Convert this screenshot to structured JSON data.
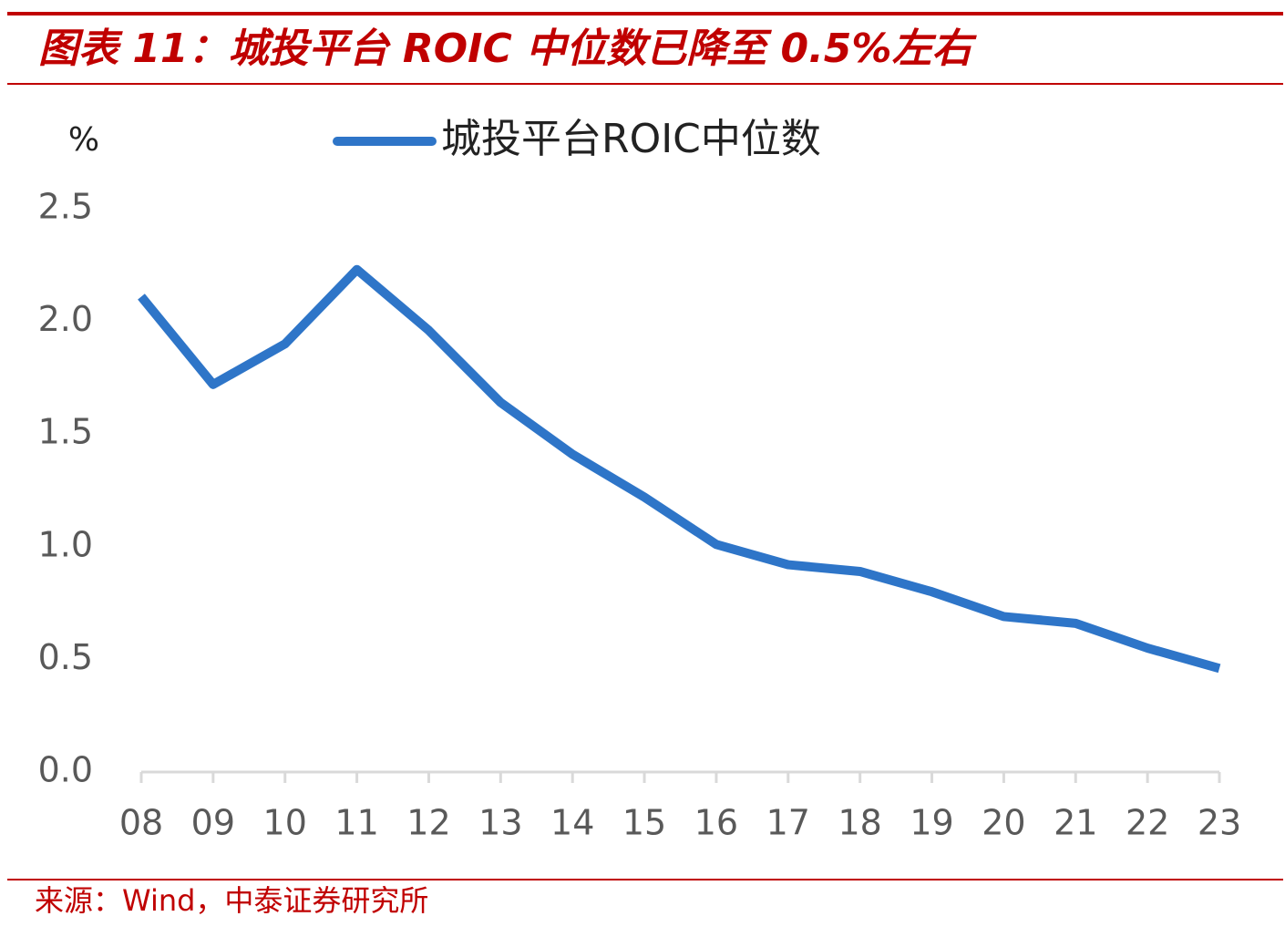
{
  "title": "图表 11：城投平台 ROIC 中位数已降至 0.5%左右",
  "source": "来源：Wind，中泰证券研究所",
  "chart_data": {
    "type": "line",
    "y_unit_label": "%",
    "categories": [
      "08",
      "09",
      "10",
      "11",
      "12",
      "13",
      "14",
      "15",
      "16",
      "17",
      "18",
      "19",
      "20",
      "21",
      "22",
      "23"
    ],
    "series": [
      {
        "name": "城投平台ROIC中位数",
        "color": "#2e75c8",
        "values": [
          2.11,
          1.72,
          1.9,
          2.23,
          1.96,
          1.64,
          1.41,
          1.22,
          1.01,
          0.92,
          0.89,
          0.8,
          0.69,
          0.66,
          0.55,
          0.46
        ]
      }
    ],
    "ylim": [
      0,
      2.5
    ],
    "yticks": [
      {
        "value": 0,
        "label": "0.0"
      },
      0.5,
      {
        "value": 1,
        "label": "1.0"
      },
      1.5,
      {
        "value": 2,
        "label": "2.0"
      },
      2.5
    ],
    "grid": false
  }
}
